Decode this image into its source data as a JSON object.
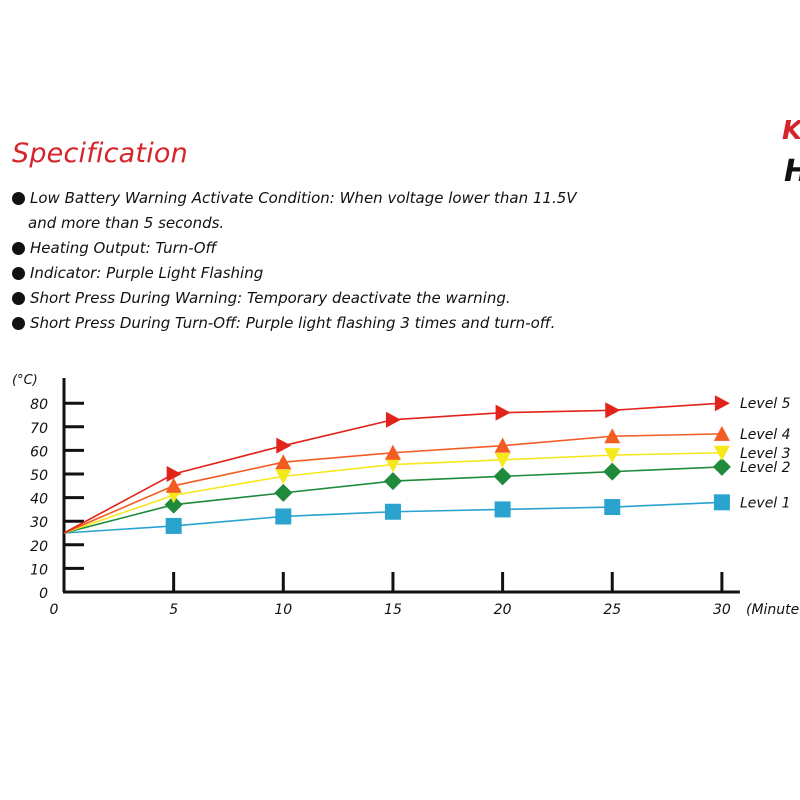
{
  "heading": "Specification",
  "corner_text": {
    "top": "K",
    "bottom": "H"
  },
  "spec_items": [
    {
      "line1": "Low Battery Warning Activate Condition: When voltage lower than 11.5V",
      "line2": "and more than 5 seconds."
    },
    {
      "line1": "Heating Output: Turn-Off"
    },
    {
      "line1": "Indicator: Purple Light Flashing"
    },
    {
      "line1": "Short Press During Warning: Temporary deactivate the warning."
    },
    {
      "line1": "Short Press During Turn-Off: Purple light flashing 3 times and turn-off."
    }
  ],
  "chart_data": {
    "type": "line",
    "title": "",
    "xlabel": "(Minute",
    "ylabel": "(°C)",
    "x": [
      0,
      5,
      10,
      15,
      20,
      25,
      30
    ],
    "x_ticks": [
      "0",
      "5",
      "10",
      "15",
      "20",
      "25",
      "30"
    ],
    "y_ticks": [
      "0",
      "10",
      "20",
      "30",
      "40",
      "50",
      "60",
      "70",
      "80"
    ],
    "xlim": [
      0,
      30
    ],
    "ylim": [
      0,
      85
    ],
    "grid": false,
    "legend": "right, at line ends",
    "series": [
      {
        "name": "Level 5",
        "color": "#e2231a",
        "marker": "triangle-right",
        "values": [
          25,
          50,
          62,
          73,
          76,
          77,
          80
        ]
      },
      {
        "name": "Level 4",
        "color": "#f25c23",
        "marker": "triangle-up",
        "values": [
          25,
          45,
          55,
          59,
          62,
          66,
          67
        ]
      },
      {
        "name": "Level 3",
        "color": "#f5e81b",
        "marker": "triangle-down",
        "values": [
          25,
          41,
          49,
          54,
          56,
          58,
          59
        ]
      },
      {
        "name": "Level 2",
        "color": "#1f8a3a",
        "marker": "diamond",
        "values": [
          25,
          37,
          42,
          47,
          49,
          51,
          53
        ]
      },
      {
        "name": "Level 1",
        "color": "#2aa3cf",
        "marker": "square",
        "values": [
          25,
          28,
          32,
          34,
          35,
          36,
          38
        ]
      }
    ]
  }
}
